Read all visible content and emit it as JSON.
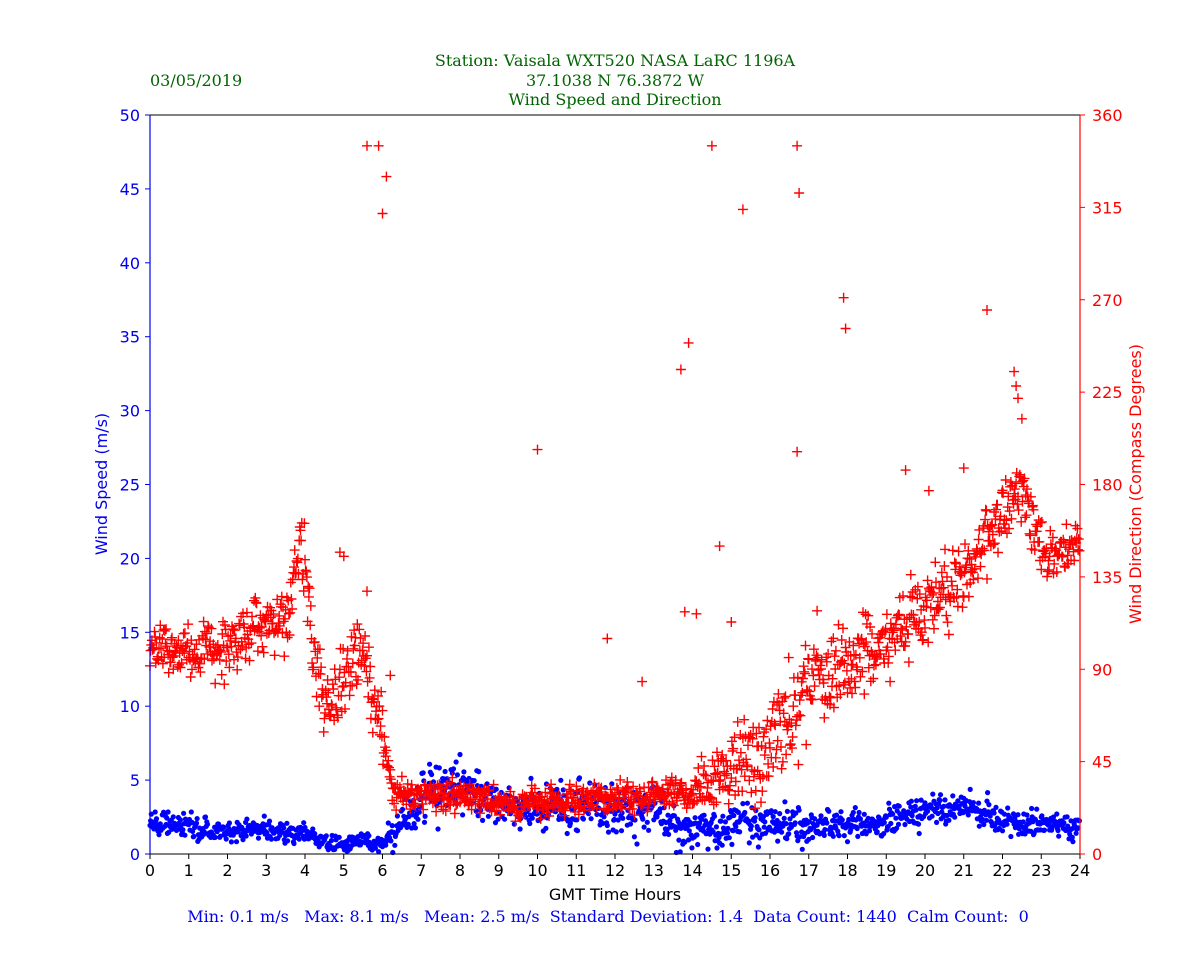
{
  "colors": {
    "speed": "#0000ff",
    "direction": "#ff0000",
    "title": "#006400",
    "frame": "#000000"
  },
  "chart_data": {
    "type": "scatter",
    "date": "03/05/2019",
    "title_lines": [
      "Station:  Vaisala WXT520  NASA LaRC 1196A",
      "37.1038 N 76.3872 W",
      "Wind Speed and Direction"
    ],
    "xlabel": "GMT Time Hours",
    "ylabel_left": "Wind Speed (m/s)",
    "ylabel_right": "Wind Direction (Compass Degrees)",
    "xlim": [
      0,
      24
    ],
    "ylim_left": [
      0,
      50
    ],
    "ylim_right": [
      0,
      360
    ],
    "xticks": [
      0,
      1,
      2,
      3,
      4,
      5,
      6,
      7,
      8,
      9,
      10,
      11,
      12,
      13,
      14,
      15,
      16,
      17,
      18,
      19,
      20,
      21,
      22,
      23,
      24
    ],
    "yticks_left": [
      0,
      5,
      10,
      15,
      20,
      25,
      30,
      35,
      40,
      45,
      50
    ],
    "yticks_right": [
      0,
      45,
      90,
      135,
      180,
      225,
      270,
      315,
      360
    ],
    "stats": "Min: 0.1 m/s   Max: 8.1 m/s   Mean: 2.5 m/s  Standard Deviation: 1.4  Data Count: 1440  Calm Count:  0",
    "speed_profile": {
      "x": [
        0,
        1,
        2,
        3,
        4,
        4.5,
        5,
        5.5,
        6,
        6.3,
        7,
        8,
        9,
        10,
        11,
        12,
        13,
        14,
        15,
        16,
        16.5,
        17,
        18,
        19,
        20,
        21,
        21.5,
        22,
        23,
        24
      ],
      "mean": [
        2.2,
        1.8,
        1.6,
        1.7,
        1.3,
        1.0,
        0.5,
        1.0,
        0.6,
        1.5,
        4.0,
        4.5,
        3.5,
        3.0,
        3.3,
        3.0,
        3.0,
        1.5,
        2.0,
        2.2,
        2.0,
        1.8,
        2.0,
        2.2,
        2.8,
        3.2,
        2.8,
        2.3,
        2.0,
        1.7
      ],
      "spread": [
        0.6,
        0.6,
        0.6,
        0.6,
        0.5,
        0.5,
        0.4,
        0.5,
        0.4,
        1.0,
        1.6,
        1.4,
        1.2,
        1.3,
        1.5,
        1.4,
        1.4,
        1.2,
        1.2,
        1.2,
        1.0,
        0.9,
        0.8,
        0.8,
        0.8,
        0.8,
        0.9,
        0.8,
        0.7,
        0.6
      ]
    },
    "direction_profile": {
      "x": [
        0,
        1,
        2,
        3,
        3.6,
        3.9,
        4.2,
        4.6,
        5,
        5.5,
        6,
        6.3,
        7,
        8,
        9,
        10,
        11,
        12,
        13,
        14,
        15,
        16,
        17,
        18,
        19,
        20,
        21,
        22,
        22.5,
        23,
        23.5,
        24
      ],
      "mean": [
        100,
        100,
        100,
        115,
        115,
        160,
        100,
        70,
        85,
        100,
        60,
        30,
        28,
        28,
        25,
        25,
        26,
        27,
        28,
        30,
        40,
        50,
        85,
        95,
        100,
        120,
        135,
        165,
        180,
        150,
        145,
        155
      ],
      "spread": [
        8,
        10,
        12,
        10,
        15,
        15,
        15,
        15,
        15,
        12,
        15,
        6,
        6,
        6,
        6,
        6,
        6,
        6,
        6,
        8,
        18,
        25,
        20,
        15,
        15,
        15,
        15,
        15,
        12,
        15,
        8,
        8
      ]
    },
    "direction_outliers": [
      [
        5.6,
        345
      ],
      [
        5.9,
        345
      ],
      [
        6.1,
        330
      ],
      [
        6.0,
        312
      ],
      [
        10.0,
        197
      ],
      [
        13.7,
        236
      ],
      [
        13.9,
        249
      ],
      [
        14.5,
        345
      ],
      [
        15.3,
        314
      ],
      [
        16.7,
        345
      ],
      [
        16.75,
        322
      ],
      [
        16.7,
        196
      ],
      [
        17.9,
        271
      ],
      [
        17.95,
        256
      ],
      [
        21.6,
        265
      ],
      [
        22.3,
        235
      ],
      [
        22.35,
        228
      ],
      [
        22.4,
        222
      ],
      [
        22.5,
        212
      ],
      [
        19.5,
        187
      ],
      [
        20.1,
        177
      ],
      [
        21.0,
        188
      ],
      [
        11.8,
        105
      ],
      [
        12.7,
        84
      ],
      [
        14.7,
        150
      ],
      [
        15.0,
        113
      ],
      [
        13.8,
        118
      ],
      [
        14.1,
        117
      ],
      [
        18.1,
        92
      ],
      [
        4.9,
        147
      ],
      [
        5.0,
        145
      ],
      [
        5.6,
        128
      ],
      [
        6.2,
        87
      ]
    ]
  }
}
